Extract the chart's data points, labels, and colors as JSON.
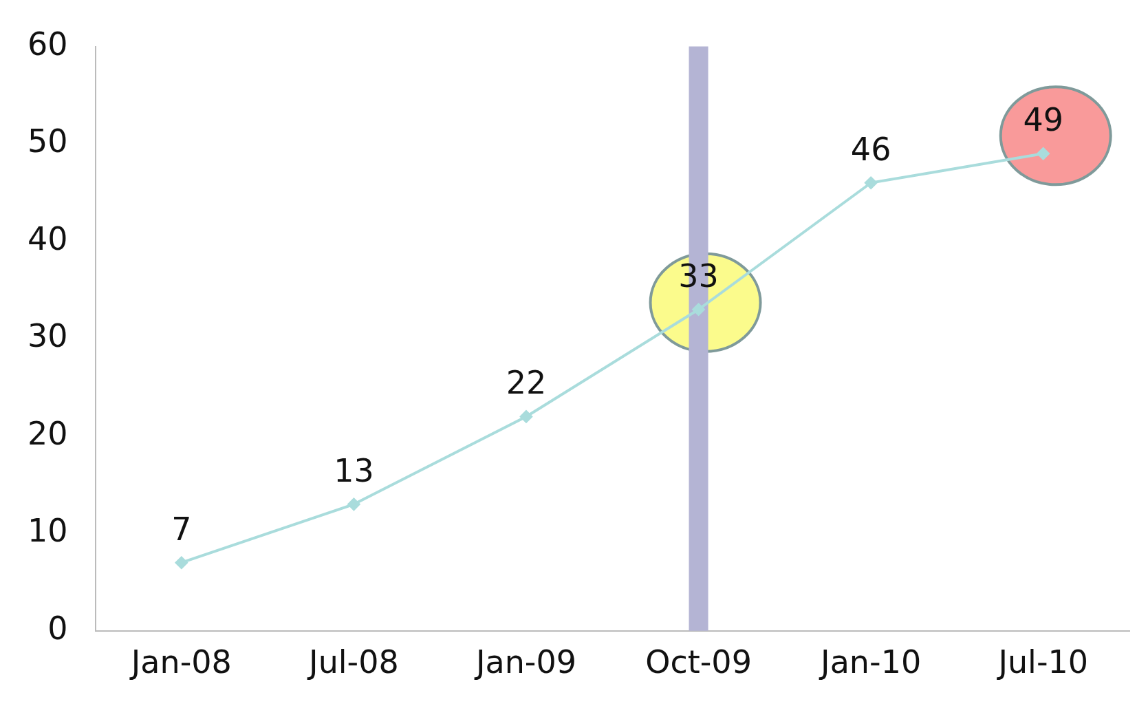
{
  "chart_data": {
    "type": "line",
    "categories": [
      "Jan-08",
      "Jul-08",
      "Jan-09",
      "Oct-09",
      "Jan-10",
      "Jul-10"
    ],
    "series": [
      {
        "color": "#a9dcdc",
        "values": [
          7,
          13,
          22,
          33,
          46,
          49
        ]
      }
    ],
    "ylim": [
      0,
      60
    ],
    "yticks": [
      0,
      10,
      20,
      30,
      40,
      50,
      60
    ],
    "grid": false,
    "legend": false,
    "marker": "diamond",
    "line_style": "solid",
    "data_labels": true,
    "ref_lines": [
      {
        "axis": "x",
        "value": "Oct-09",
        "color": "#b4b4d4"
      }
    ]
  }
}
